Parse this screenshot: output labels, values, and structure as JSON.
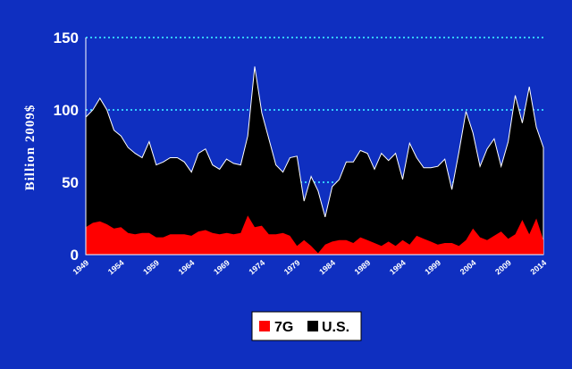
{
  "chart_data": {
    "type": "area",
    "ylabel": "Billion 2009$",
    "ylim": [
      0,
      150
    ],
    "yticks": [
      "0",
      "50",
      "100",
      "150"
    ],
    "xlim": [
      1949,
      2014
    ],
    "xticks": [
      "1949",
      "1954",
      "1959",
      "1964",
      "1969",
      "1974",
      "1979",
      "1984",
      "1989",
      "1994",
      "1999",
      "2004",
      "2009",
      "2014"
    ],
    "grid": "horizontal dotted",
    "legend_position": "bottom",
    "colors": {
      "7G": "#ff0000",
      "U.S.": "#000000",
      "background": "#0f2fc0",
      "grid": "#33ccff"
    },
    "x": [
      1949,
      1950,
      1951,
      1952,
      1953,
      1954,
      1955,
      1956,
      1957,
      1958,
      1959,
      1960,
      1961,
      1962,
      1963,
      1964,
      1965,
      1966,
      1967,
      1968,
      1969,
      1970,
      1971,
      1972,
      1973,
      1974,
      1975,
      1976,
      1977,
      1978,
      1979,
      1980,
      1981,
      1982,
      1983,
      1984,
      1985,
      1986,
      1987,
      1988,
      1989,
      1990,
      1991,
      1992,
      1993,
      1994,
      1995,
      1996,
      1997,
      1998,
      1999,
      2000,
      2001,
      2002,
      2003,
      2004,
      2005,
      2006,
      2007,
      2008,
      2009,
      2010,
      2011,
      2012,
      2013,
      2014
    ],
    "series": [
      {
        "name": "7G",
        "values": [
          19,
          22,
          23,
          21,
          18,
          19,
          15,
          14,
          15,
          15,
          12,
          12,
          14,
          14,
          14,
          13,
          16,
          17,
          15,
          14,
          15,
          14,
          15,
          27,
          19,
          20,
          14,
          14,
          15,
          13,
          6,
          10,
          6,
          1,
          7,
          9,
          10,
          10,
          8,
          12,
          10,
          8,
          6,
          9,
          6,
          10,
          7,
          13,
          11,
          9,
          7,
          8,
          8,
          6,
          10,
          18,
          12,
          10,
          13,
          16,
          11,
          14,
          24,
          14,
          25,
          10
        ],
        "stacked_total": [
          95,
          100,
          108,
          100,
          86,
          82,
          74,
          70,
          67,
          78,
          62,
          64,
          67,
          67,
          64,
          57,
          70,
          73,
          62,
          59,
          66,
          63,
          62,
          82,
          130,
          98,
          80,
          62,
          57,
          67,
          68,
          37,
          54,
          44,
          26,
          47,
          52,
          64,
          64,
          72,
          70,
          59,
          70,
          65,
          70,
          52,
          77,
          67,
          60,
          60,
          61,
          66,
          45,
          71,
          99,
          84,
          61,
          73,
          80,
          61,
          78,
          110,
          91,
          116,
          88,
          74
        ]
      },
      {
        "name": "U.S."
      }
    ]
  }
}
